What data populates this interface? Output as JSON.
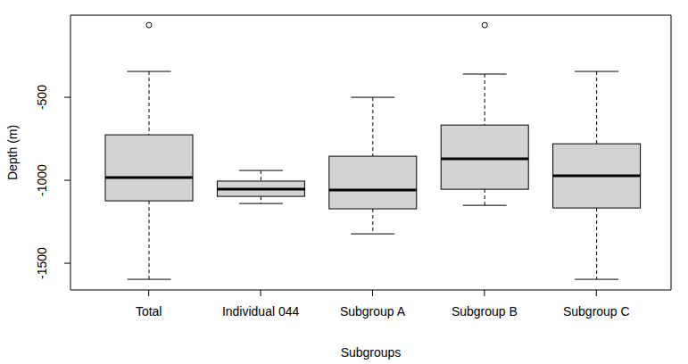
{
  "chart_data": {
    "type": "box",
    "x_label": "Subgroups",
    "y_label": "Depth (m)",
    "categories": [
      "Total",
      "Individual 044",
      "Subgroup A",
      "Subgroup B",
      "Subgroup C"
    ],
    "boxes": [
      {
        "min": -1597,
        "q1": -1124,
        "median": -984,
        "q3": -726,
        "max": -344,
        "outliers": [
          -65
        ]
      },
      {
        "min": -1140,
        "q1": -1097,
        "median": -1054,
        "q3": -1005,
        "max": -941,
        "outliers": []
      },
      {
        "min": -1323,
        "q1": -1172,
        "median": -1059,
        "q3": -855,
        "max": -500,
        "outliers": []
      },
      {
        "min": -1151,
        "q1": -1054,
        "median": -871,
        "q3": -667,
        "max": -360,
        "outliers": [
          -65
        ]
      },
      {
        "min": -1597,
        "q1": -1167,
        "median": -973,
        "q3": -780,
        "max": -344,
        "outliers": []
      }
    ],
    "color": "#d3d3d3",
    "ylim": [
      -1661,
      -5
    ],
    "yticks": [
      -1500,
      -1000,
      -500
    ]
  }
}
